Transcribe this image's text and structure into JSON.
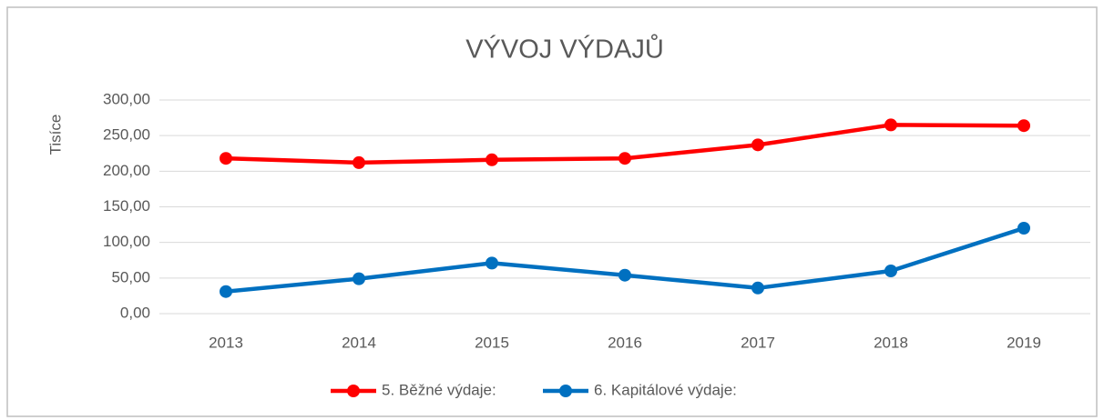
{
  "chart_data": {
    "type": "line",
    "title": "VÝVOJ VÝDAJŮ",
    "y_label": "Tisíce",
    "categories": [
      "2013",
      "2014",
      "2015",
      "2016",
      "2017",
      "2018",
      "2019"
    ],
    "series": [
      {
        "name": "5. Běžné výdaje:",
        "color": "#ff0000",
        "values": [
          218,
          212,
          216,
          218,
          237,
          265,
          264
        ]
      },
      {
        "name": "6. Kapitálové výdaje:",
        "color": "#0070c0",
        "values": [
          31,
          49,
          71,
          54,
          36,
          60,
          120
        ]
      }
    ],
    "ylim": [
      0,
      300
    ],
    "yticks": [
      {
        "value": 0,
        "label": "0,00"
      },
      {
        "value": 50,
        "label": "50,00"
      },
      {
        "value": 100,
        "label": "100,00"
      },
      {
        "value": 150,
        "label": "150,00"
      },
      {
        "value": 200,
        "label": "200,00"
      },
      {
        "value": 250,
        "label": "250,00"
      },
      {
        "value": 300,
        "label": "300,00"
      }
    ],
    "grid": true,
    "legend": "bottom"
  }
}
